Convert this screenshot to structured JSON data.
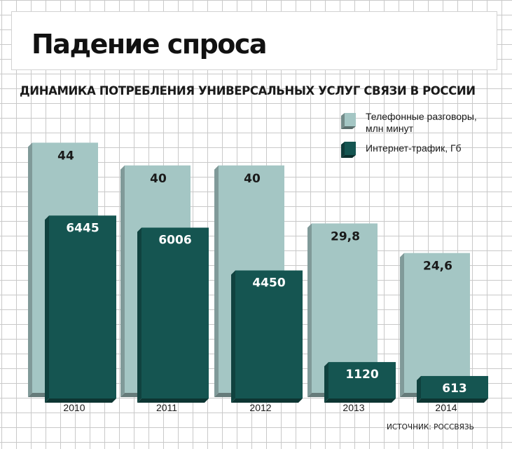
{
  "title": "Падение спроса",
  "subtitle": "ДИНАМИКА ПОТРЕБЛЕНИЯ УНИВЕРСАЛЬНЫХ УСЛУГ СВЯЗИ В РОССИИ",
  "source": "ИСТОЧНИК: РОССВЯЗЬ",
  "legend": {
    "phone": {
      "line1": "Телефонные разговоры,",
      "line2": "млн минут",
      "color": "#a4c6c4"
    },
    "internet": {
      "label": "Интернет-трафик, Гб",
      "color": "#155551"
    }
  },
  "chart_data": {
    "type": "bar",
    "categories": [
      "2010",
      "2011",
      "2012",
      "2013",
      "2014"
    ],
    "series": [
      {
        "name": "Телефонные разговоры, млн минут",
        "values": [
          44,
          40,
          40,
          29.8,
          24.6
        ],
        "labels": [
          "44",
          "40",
          "40",
          "29,8",
          "24,6"
        ],
        "color": "#a4c6c4"
      },
      {
        "name": "Интернет-трафик, Гб",
        "values": [
          6445,
          6006,
          4450,
          1120,
          613
        ],
        "labels": [
          "6445",
          "6006",
          "4450",
          "1120",
          "613"
        ],
        "color": "#155551"
      }
    ],
    "grid": true,
    "legend_position": "top-right"
  }
}
